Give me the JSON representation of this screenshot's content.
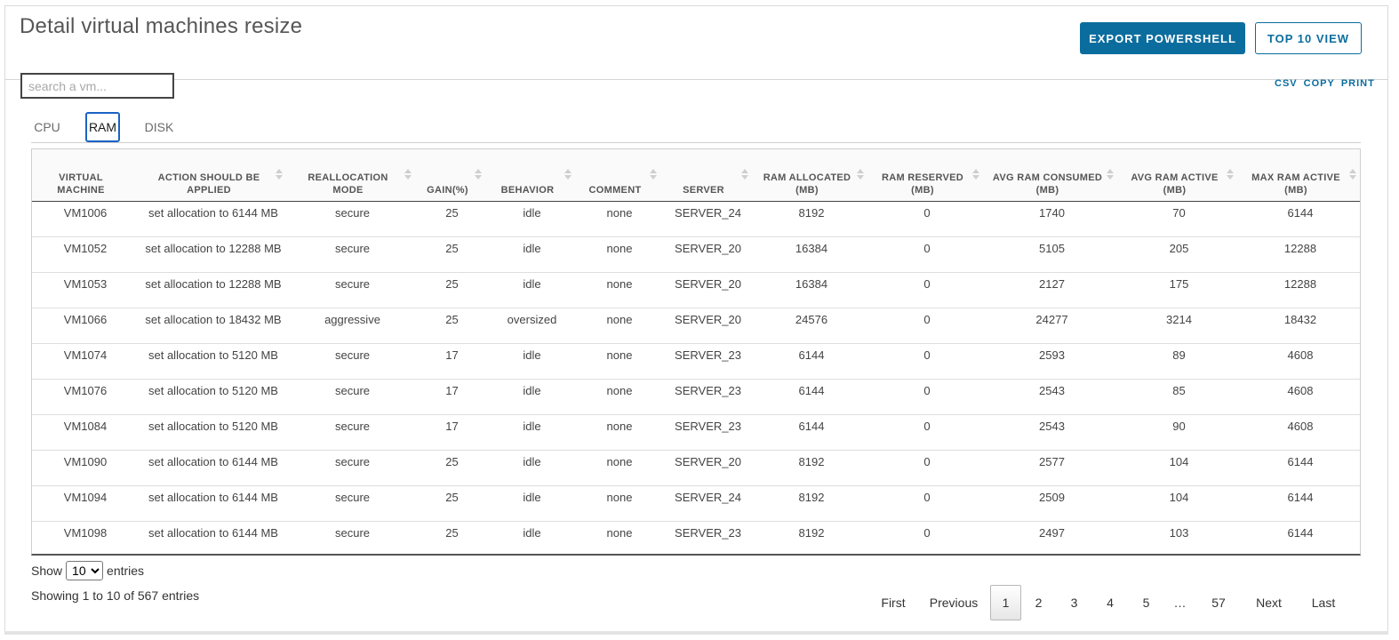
{
  "page": {
    "title": "Detail virtual machines resize",
    "buttons": {
      "export_powershell": "EXPORT POWERSHELL",
      "top10_view": "TOP 10 VIEW"
    },
    "search": {
      "placeholder": "search a vm...",
      "value": ""
    },
    "export_links": [
      "CSV",
      "COPY",
      "PRINT"
    ],
    "tabs": [
      {
        "label": "CPU",
        "active": false
      },
      {
        "label": "RAM",
        "active": true
      },
      {
        "label": "DISK",
        "active": false
      }
    ]
  },
  "table": {
    "columns": [
      "VIRTUAL MACHINE",
      "ACTION SHOULD BE APPLIED",
      "REALLOCATION MODE",
      "GAIN(%)",
      "BEHAVIOR",
      "COMMENT",
      "SERVER",
      "RAM ALLOCATED (MB)",
      "RAM RESERVED (MB)",
      "AVG RAM CONSUMED (MB)",
      "AVG RAM ACTIVE (MB)",
      "MAX RAM ACTIVE (MB)"
    ],
    "sorted_column": 0,
    "rows": [
      [
        "VM1006",
        "set allocation to 6144 MB",
        "secure",
        "25",
        "idle",
        "none",
        "SERVER_24",
        "8192",
        "0",
        "1740",
        "70",
        "6144"
      ],
      [
        "VM1052",
        "set allocation to 12288 MB",
        "secure",
        "25",
        "idle",
        "none",
        "SERVER_20",
        "16384",
        "0",
        "5105",
        "205",
        "12288"
      ],
      [
        "VM1053",
        "set allocation to 12288 MB",
        "secure",
        "25",
        "idle",
        "none",
        "SERVER_20",
        "16384",
        "0",
        "2127",
        "175",
        "12288"
      ],
      [
        "VM1066",
        "set allocation to 18432 MB",
        "aggressive",
        "25",
        "oversized",
        "none",
        "SERVER_20",
        "24576",
        "0",
        "24277",
        "3214",
        "18432"
      ],
      [
        "VM1074",
        "set allocation to 5120 MB",
        "secure",
        "17",
        "idle",
        "none",
        "SERVER_23",
        "6144",
        "0",
        "2593",
        "89",
        "4608"
      ],
      [
        "VM1076",
        "set allocation to 5120 MB",
        "secure",
        "17",
        "idle",
        "none",
        "SERVER_23",
        "6144",
        "0",
        "2543",
        "85",
        "4608"
      ],
      [
        "VM1084",
        "set allocation to 5120 MB",
        "secure",
        "17",
        "idle",
        "none",
        "SERVER_23",
        "6144",
        "0",
        "2543",
        "90",
        "4608"
      ],
      [
        "VM1090",
        "set allocation to 6144 MB",
        "secure",
        "25",
        "idle",
        "none",
        "SERVER_20",
        "8192",
        "0",
        "2577",
        "104",
        "6144"
      ],
      [
        "VM1094",
        "set allocation to 6144 MB",
        "secure",
        "25",
        "idle",
        "none",
        "SERVER_24",
        "8192",
        "0",
        "2509",
        "104",
        "6144"
      ],
      [
        "VM1098",
        "set allocation to 6144 MB",
        "secure",
        "25",
        "idle",
        "none",
        "SERVER_23",
        "8192",
        "0",
        "2497",
        "103",
        "6144"
      ]
    ]
  },
  "footer": {
    "show_label": "Show",
    "entries_label": "entries",
    "page_size": "10",
    "info": "Showing 1 to 10 of 567 entries"
  },
  "pagination": {
    "items": [
      {
        "label": "First",
        "type": "nav"
      },
      {
        "label": "Previous",
        "type": "nav"
      },
      {
        "label": "1",
        "type": "current"
      },
      {
        "label": "2",
        "type": "page"
      },
      {
        "label": "3",
        "type": "page"
      },
      {
        "label": "4",
        "type": "page"
      },
      {
        "label": "5",
        "type": "page"
      },
      {
        "label": "…",
        "type": "dots"
      },
      {
        "label": "57",
        "type": "page"
      },
      {
        "label": "Next",
        "type": "nav"
      },
      {
        "label": "Last",
        "type": "nav"
      }
    ]
  }
}
